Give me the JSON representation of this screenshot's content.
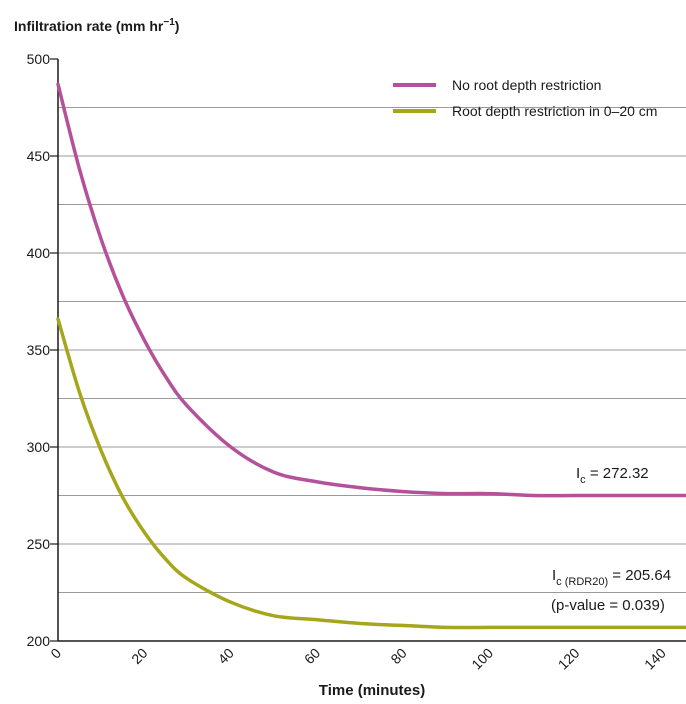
{
  "chart_data": {
    "type": "line",
    "ylabel": "Infiltration rate (mm hr",
    "ylabel_sup": "−1",
    "ylabel_close": ")",
    "xlabel": "Time (minutes)",
    "xlim": [
      0,
      150
    ],
    "ylim": [
      200,
      500
    ],
    "xticks": [
      "0",
      "20",
      "40",
      "60",
      "80",
      "100",
      "120",
      "140"
    ],
    "yticks": [
      "500",
      "450",
      "400",
      "350",
      "300",
      "250",
      "200"
    ],
    "grid": "horizontal",
    "legend_position": "top-right",
    "series": [
      {
        "name": "No root depth restriction",
        "color": "#b5509a",
        "x": [
          0,
          5,
          10,
          15,
          20,
          25,
          30,
          40,
          50,
          60,
          70,
          80,
          90,
          100,
          110,
          120,
          130,
          140,
          150
        ],
        "y": [
          487,
          443,
          407,
          378,
          355,
          336,
          321,
          300,
          287,
          282,
          279,
          277,
          276,
          276,
          275,
          275,
          275,
          275,
          275
        ]
      },
      {
        "name": "Root depth restriction in 0–20 cm",
        "color": "#a6a61c",
        "x": [
          0,
          5,
          10,
          15,
          20,
          25,
          30,
          40,
          50,
          60,
          70,
          80,
          90,
          100,
          110,
          120,
          130,
          140,
          150
        ],
        "y": [
          366,
          328,
          298,
          274,
          256,
          242,
          232,
          220,
          213,
          211,
          209,
          208,
          207,
          207,
          207,
          207,
          207,
          207,
          207
        ]
      }
    ],
    "annotations": {
      "ic_main": "I",
      "ic_sub": "c",
      "ic_value": " = 272.32",
      "ic2_main": "I",
      "ic2_sub": "c (RDR20)",
      "ic2_value": " = 205.64",
      "pvalue": "(p-value = 0.039)"
    }
  }
}
